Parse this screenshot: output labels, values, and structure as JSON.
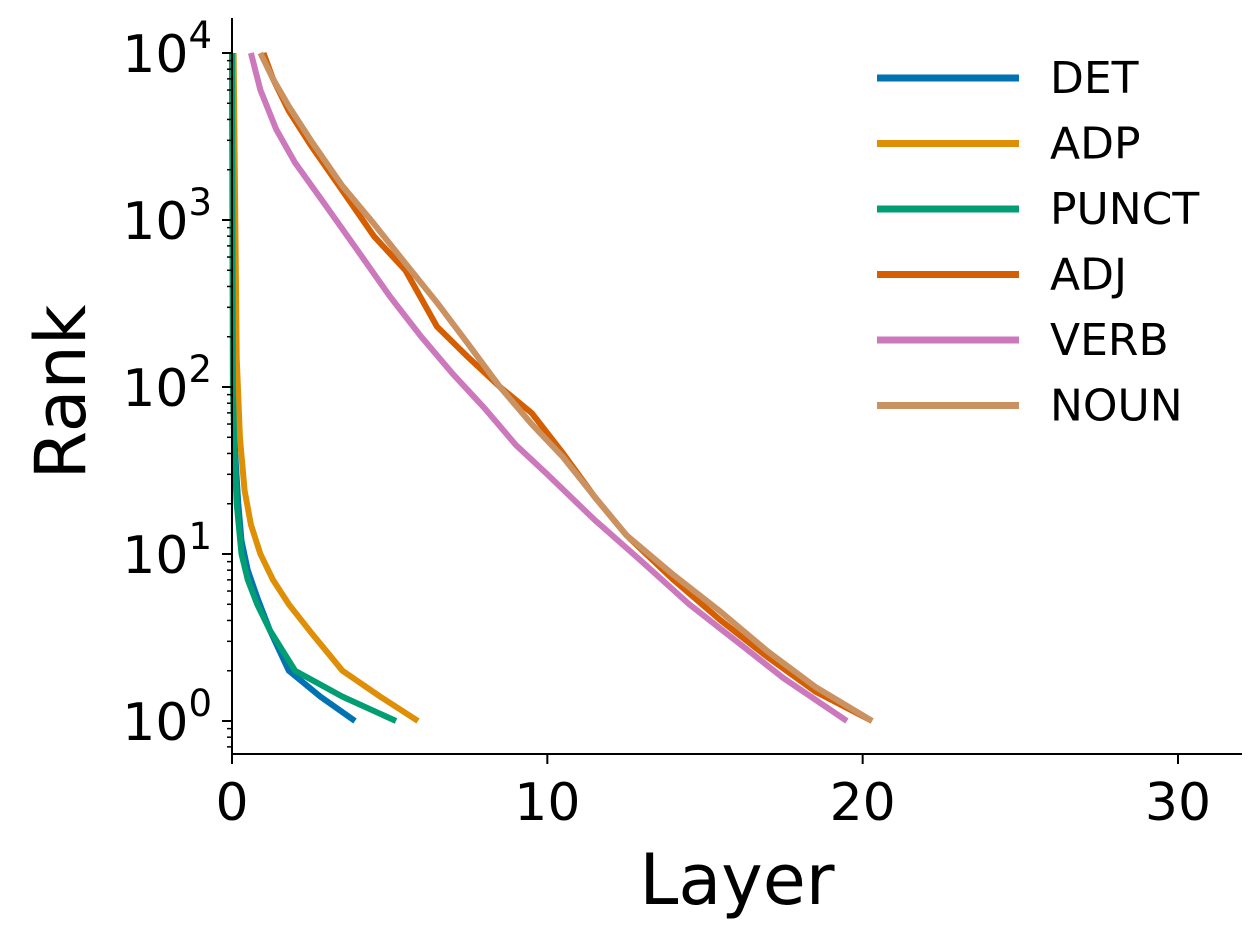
{
  "chart_data": {
    "type": "line",
    "title": "",
    "xlabel": "Layer",
    "ylabel": "Rank",
    "xlim": [
      0,
      32
    ],
    "ylim": [
      0.65,
      16000
    ],
    "yscale": "log",
    "xticks": [
      0,
      10,
      20,
      30
    ],
    "xtick_labels": [
      "0",
      "10",
      "20",
      "30"
    ],
    "yticks": [
      1,
      10,
      100,
      1000,
      10000
    ],
    "ytick_labels": [
      {
        "base": "10",
        "exp": "0"
      },
      {
        "base": "10",
        "exp": "1"
      },
      {
        "base": "10",
        "exp": "2"
      },
      {
        "base": "10",
        "exp": "3"
      },
      {
        "base": "10",
        "exp": "4"
      }
    ],
    "grid": false,
    "legend_position": "top-right",
    "series": [
      {
        "name": "DET",
        "color": "#0173B2",
        "points": [
          [
            0,
            10000
          ],
          [
            0.05,
            100
          ],
          [
            0.1,
            40
          ],
          [
            0.2,
            20
          ],
          [
            0.3,
            12
          ],
          [
            0.5,
            8
          ],
          [
            0.8,
            5.5
          ],
          [
            1.2,
            3.5
          ],
          [
            1.8,
            2
          ],
          [
            2.8,
            1.4
          ],
          [
            3.9,
            1
          ]
        ]
      },
      {
        "name": "ADP",
        "color": "#DE8F05",
        "points": [
          [
            0.05,
            10000
          ],
          [
            0.15,
            150
          ],
          [
            0.25,
            50
          ],
          [
            0.4,
            24
          ],
          [
            0.6,
            15
          ],
          [
            0.9,
            10
          ],
          [
            1.3,
            7
          ],
          [
            1.8,
            5
          ],
          [
            2.5,
            3.4
          ],
          [
            3.5,
            2
          ],
          [
            4.7,
            1.4
          ],
          [
            5.9,
            1
          ]
        ]
      },
      {
        "name": "PUNCT",
        "color": "#029E73",
        "points": [
          [
            0,
            10000
          ],
          [
            0.03,
            100
          ],
          [
            0.08,
            40
          ],
          [
            0.15,
            20
          ],
          [
            0.3,
            10
          ],
          [
            0.5,
            7
          ],
          [
            0.8,
            5
          ],
          [
            1.2,
            3.5
          ],
          [
            2,
            2
          ],
          [
            3.5,
            1.4
          ],
          [
            5.2,
            1
          ]
        ]
      },
      {
        "name": "ADJ",
        "color": "#D55E00",
        "points": [
          [
            1,
            10000
          ],
          [
            1.3,
            7000
          ],
          [
            1.8,
            4500
          ],
          [
            2.5,
            2800
          ],
          [
            3.5,
            1500
          ],
          [
            4.5,
            800
          ],
          [
            5.5,
            500
          ],
          [
            6.5,
            230
          ],
          [
            7.5,
            150
          ],
          [
            8.5,
            100
          ],
          [
            9.5,
            70
          ],
          [
            10.5,
            40
          ],
          [
            11.5,
            22
          ],
          [
            12.5,
            13
          ],
          [
            14,
            7
          ],
          [
            15.5,
            4
          ],
          [
            17,
            2.4
          ],
          [
            18.5,
            1.5
          ],
          [
            20.3,
            1
          ]
        ]
      },
      {
        "name": "VERB",
        "color": "#CC78BC",
        "points": [
          [
            0.6,
            10000
          ],
          [
            0.9,
            6000
          ],
          [
            1.4,
            3500
          ],
          [
            2,
            2200
          ],
          [
            3,
            1200
          ],
          [
            4,
            650
          ],
          [
            5,
            350
          ],
          [
            6,
            200
          ],
          [
            7,
            120
          ],
          [
            8,
            75
          ],
          [
            9,
            45
          ],
          [
            10,
            30
          ],
          [
            11.5,
            16
          ],
          [
            13,
            9
          ],
          [
            14.5,
            5
          ],
          [
            16,
            3
          ],
          [
            17.5,
            1.8
          ],
          [
            19.5,
            1
          ]
        ]
      },
      {
        "name": "NOUN",
        "color": "#CA9161",
        "points": [
          [
            0.9,
            10000
          ],
          [
            1.3,
            7000
          ],
          [
            1.8,
            4800
          ],
          [
            2.5,
            3000
          ],
          [
            3.5,
            1600
          ],
          [
            4.5,
            950
          ],
          [
            5.5,
            550
          ],
          [
            6.5,
            320
          ],
          [
            7.5,
            180
          ],
          [
            8.5,
            100
          ],
          [
            9.5,
            60
          ],
          [
            10.5,
            38
          ],
          [
            11.5,
            22
          ],
          [
            12.5,
            13
          ],
          [
            14,
            7.5
          ],
          [
            15.5,
            4.5
          ],
          [
            17,
            2.6
          ],
          [
            18.5,
            1.6
          ],
          [
            20.3,
            1
          ]
        ]
      }
    ]
  }
}
